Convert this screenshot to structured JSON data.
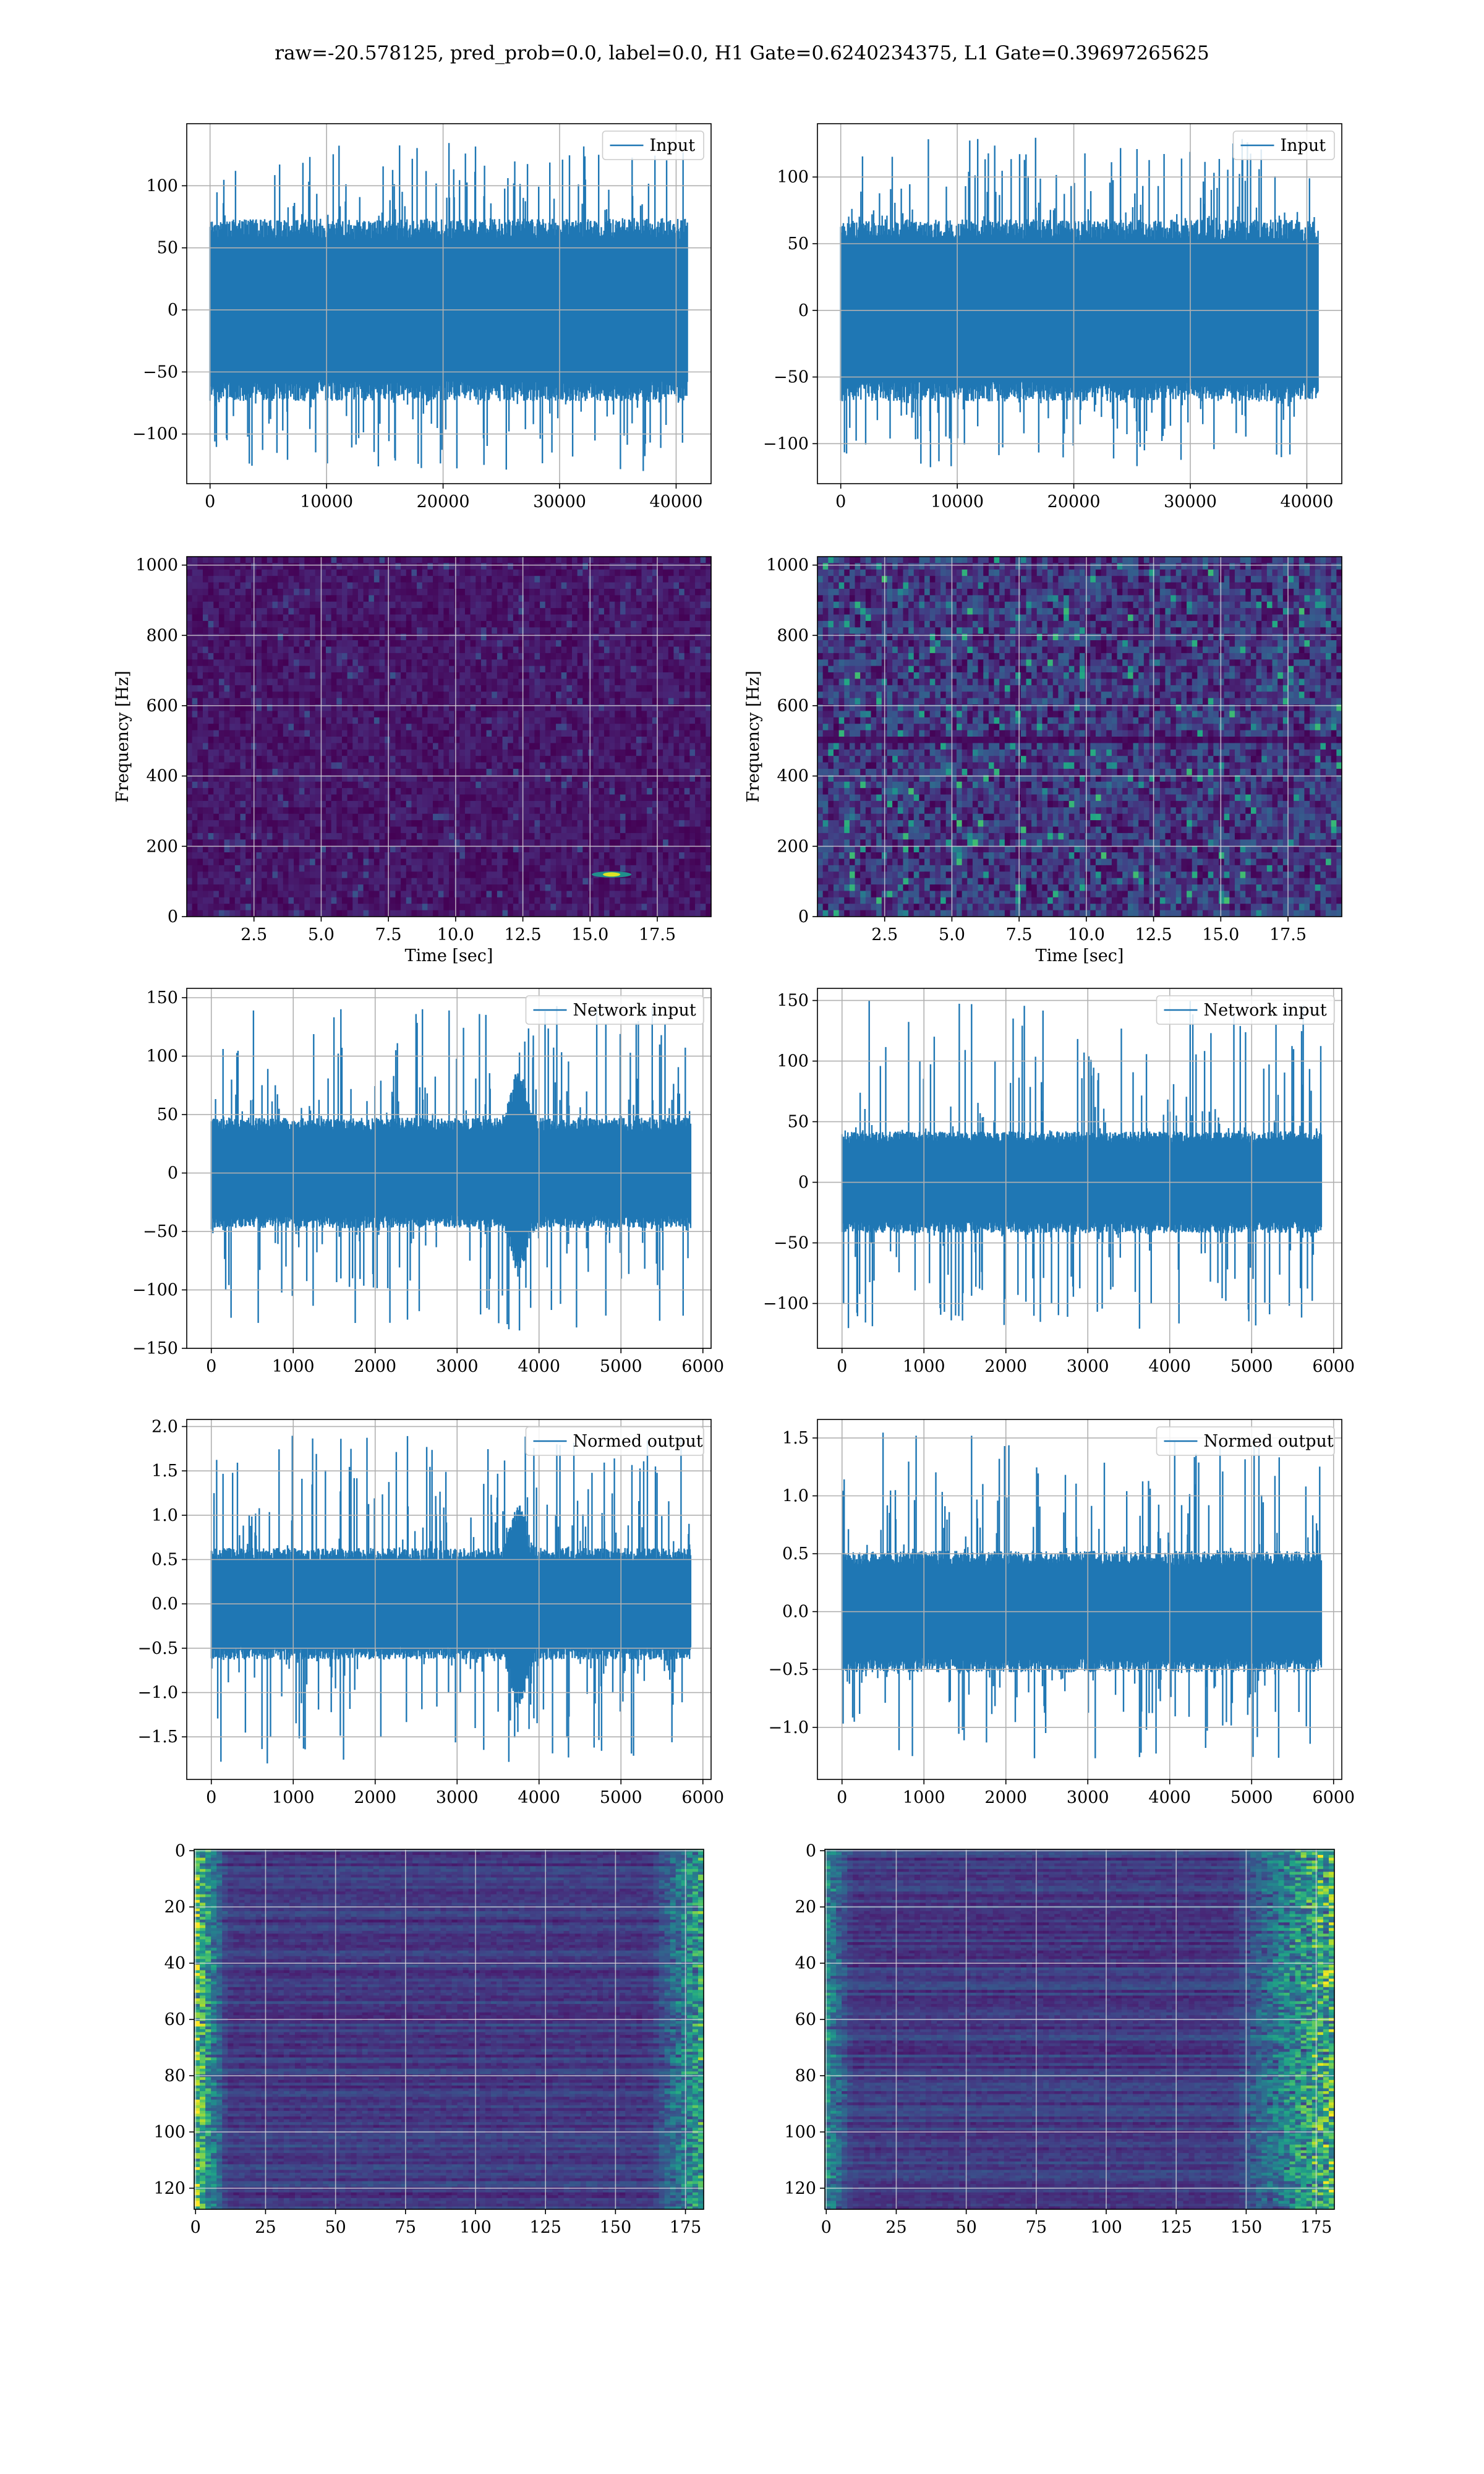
{
  "figure": {
    "suptitle": "raw=-20.578125, pred_prob=0.0, label=0.0, H1 Gate=0.6240234375, L1 Gate=0.39697265625"
  },
  "colors": {
    "line": "#1f77b4",
    "grid": "#b0b0b0",
    "spine": "#000000",
    "viridis_low": "#440154",
    "viridis_mid": "#21918c",
    "viridis_high": "#fde725"
  },
  "chart_data": [
    {
      "type": "line",
      "id": "input-h1",
      "legend": "Input",
      "legend_loc": "upper right",
      "xlim": [
        -2000,
        43000
      ],
      "ylim": [
        -140,
        150
      ],
      "xticks": [
        0,
        10000,
        20000,
        30000,
        40000
      ],
      "xticklabels": [
        "0",
        "10000",
        "20000",
        "30000",
        "40000"
      ],
      "yticks": [
        -100,
        -50,
        0,
        50,
        100
      ],
      "yticklabels": [
        "−100",
        "−50",
        "0",
        "50",
        "100"
      ],
      "x_range": [
        0,
        40960
      ],
      "envelope": {
        "core_amplitude": 70,
        "peak_max": 135,
        "peak_min": -130
      },
      "xlabel": "",
      "ylabel": "",
      "grid": true
    },
    {
      "type": "line",
      "id": "input-l1",
      "legend": "Input",
      "legend_loc": "upper right",
      "xlim": [
        -2000,
        43000
      ],
      "ylim": [
        -130,
        140
      ],
      "xticks": [
        0,
        10000,
        20000,
        30000,
        40000
      ],
      "xticklabels": [
        "0",
        "10000",
        "20000",
        "30000",
        "40000"
      ],
      "yticks": [
        -100,
        -50,
        0,
        50,
        100
      ],
      "yticklabels": [
        "−100",
        "−50",
        "0",
        "50",
        "100"
      ],
      "x_range": [
        0,
        40960
      ],
      "envelope": {
        "core_amplitude": 65,
        "peak_max": 130,
        "peak_min": -118
      },
      "xlabel": "",
      "ylabel": "",
      "grid": true
    },
    {
      "type": "heatmap",
      "id": "spectrogram-h1",
      "colormap": "viridis",
      "xlim": [
        0,
        19.5
      ],
      "ylim": [
        0,
        1024
      ],
      "xticks": [
        2.5,
        5.0,
        7.5,
        10.0,
        12.5,
        15.0,
        17.5
      ],
      "xticklabels": [
        "2.5",
        "5.0",
        "7.5",
        "10.0",
        "12.5",
        "15.0",
        "17.5"
      ],
      "yticks": [
        0,
        200,
        400,
        600,
        800,
        1000
      ],
      "yticklabels": [
        "0",
        "200",
        "400",
        "600",
        "800",
        "1000"
      ],
      "xlabel": "Time [sec]",
      "ylabel": "Frequency [Hz]",
      "grid": true,
      "noise_level": 0.12,
      "hot_spot": {
        "time": 15.8,
        "freq": 120
      }
    },
    {
      "type": "heatmap",
      "id": "spectrogram-l1",
      "colormap": "viridis",
      "xlim": [
        0,
        19.5
      ],
      "ylim": [
        0,
        1024
      ],
      "xticks": [
        2.5,
        5.0,
        7.5,
        10.0,
        12.5,
        15.0,
        17.5
      ],
      "xticklabels": [
        "2.5",
        "5.0",
        "7.5",
        "10.0",
        "12.5",
        "15.0",
        "17.5"
      ],
      "yticks": [
        0,
        200,
        400,
        600,
        800,
        1000
      ],
      "yticklabels": [
        "0",
        "200",
        "400",
        "600",
        "800",
        "1000"
      ],
      "xlabel": "Time [sec]",
      "ylabel": "Frequency [Hz]",
      "grid": true,
      "noise_level": 0.32,
      "dark_band_freq": 500
    },
    {
      "type": "line",
      "id": "network-input-h1",
      "legend": "Network input",
      "legend_loc": "upper right",
      "xlim": [
        -300,
        6100
      ],
      "ylim": [
        -150,
        158
      ],
      "xticks": [
        0,
        1000,
        2000,
        3000,
        4000,
        5000,
        6000
      ],
      "xticklabels": [
        "0",
        "1000",
        "2000",
        "3000",
        "4000",
        "5000",
        "6000"
      ],
      "yticks": [
        -150,
        -100,
        -50,
        0,
        50,
        100,
        150
      ],
      "yticklabels": [
        "−150",
        "−100",
        "−50",
        "0",
        "50",
        "100",
        "150"
      ],
      "x_range": [
        0,
        5850
      ],
      "envelope": {
        "core_amplitude": 45,
        "peak_max": 143,
        "peak_min": -135,
        "burst_center": 3750
      },
      "xlabel": "",
      "ylabel": "",
      "grid": true
    },
    {
      "type": "line",
      "id": "network-input-l1",
      "legend": "Network input",
      "legend_loc": "upper right",
      "xlim": [
        -300,
        6100
      ],
      "ylim": [
        -137,
        160
      ],
      "xticks": [
        0,
        1000,
        2000,
        3000,
        4000,
        5000,
        6000
      ],
      "xticklabels": [
        "0",
        "1000",
        "2000",
        "3000",
        "4000",
        "5000",
        "6000"
      ],
      "yticks": [
        -100,
        -50,
        0,
        50,
        100,
        150
      ],
      "yticklabels": [
        "−100",
        "−50",
        "0",
        "50",
        "100",
        "150"
      ],
      "x_range": [
        0,
        5850
      ],
      "envelope": {
        "core_amplitude": 40,
        "peak_max": 150,
        "peak_min": -122
      },
      "xlabel": "",
      "ylabel": "",
      "grid": true
    },
    {
      "type": "line",
      "id": "normed-output-h1",
      "legend": "Normed output",
      "legend_loc": "upper right",
      "xlim": [
        -300,
        6100
      ],
      "ylim": [
        -1.98,
        2.08
      ],
      "xticks": [
        0,
        1000,
        2000,
        3000,
        4000,
        5000,
        6000
      ],
      "xticklabels": [
        "0",
        "1000",
        "2000",
        "3000",
        "4000",
        "5000",
        "6000"
      ],
      "yticks": [
        -1.5,
        -1.0,
        -0.5,
        0.0,
        0.5,
        1.0,
        1.5,
        2.0
      ],
      "yticklabels": [
        "−1.5",
        "−1.0",
        "−0.5",
        "0.0",
        "0.5",
        "1.0",
        "1.5",
        "2.0"
      ],
      "x_range": [
        0,
        5850
      ],
      "envelope": {
        "core_amplitude": 0.6,
        "peak_max": 1.9,
        "peak_min": -1.8,
        "burst_center": 3750
      },
      "xlabel": "",
      "ylabel": "",
      "grid": true
    },
    {
      "type": "line",
      "id": "normed-output-l1",
      "legend": "Normed output",
      "legend_loc": "upper right",
      "xlim": [
        -300,
        6100
      ],
      "ylim": [
        -1.45,
        1.66
      ],
      "xticks": [
        0,
        1000,
        2000,
        3000,
        4000,
        5000,
        6000
      ],
      "xticklabels": [
        "0",
        "1000",
        "2000",
        "3000",
        "4000",
        "5000",
        "6000"
      ],
      "yticks": [
        -1.0,
        -0.5,
        0.0,
        0.5,
        1.0,
        1.5
      ],
      "yticklabels": [
        "−1.0",
        "−0.5",
        "0.0",
        "0.5",
        "1.0",
        "1.5"
      ],
      "x_range": [
        0,
        5850
      ],
      "envelope": {
        "core_amplitude": 0.5,
        "peak_max": 1.55,
        "peak_min": -1.27
      },
      "xlabel": "",
      "ylabel": "",
      "grid": true
    },
    {
      "type": "heatmap",
      "id": "feature-map-h1",
      "colormap": "viridis",
      "xlim": [
        -0.5,
        181.5
      ],
      "ylim": [
        127.5,
        -0.5
      ],
      "xticks": [
        0,
        25,
        50,
        75,
        100,
        125,
        150,
        175
      ],
      "xticklabels": [
        "0",
        "25",
        "50",
        "75",
        "100",
        "125",
        "150",
        "175"
      ],
      "yticks": [
        0,
        20,
        40,
        60,
        80,
        100,
        120
      ],
      "yticklabels": [
        "0",
        "20",
        "40",
        "60",
        "80",
        "100",
        "120"
      ],
      "xlabel": "",
      "ylabel": "",
      "grid": true,
      "rows": 128,
      "cols": 182,
      "edge_activation": "both"
    },
    {
      "type": "heatmap",
      "id": "feature-map-l1",
      "colormap": "viridis",
      "xlim": [
        -0.5,
        181.5
      ],
      "ylim": [
        127.5,
        -0.5
      ],
      "xticks": [
        0,
        25,
        50,
        75,
        100,
        125,
        150,
        175
      ],
      "xticklabels": [
        "0",
        "25",
        "50",
        "75",
        "100",
        "125",
        "150",
        "175"
      ],
      "yticks": [
        0,
        20,
        40,
        60,
        80,
        100,
        120
      ],
      "yticklabels": [
        "0",
        "20",
        "40",
        "60",
        "80",
        "100",
        "120"
      ],
      "xlabel": "",
      "ylabel": "",
      "grid": true,
      "rows": 128,
      "cols": 182,
      "edge_activation": "right"
    }
  ]
}
